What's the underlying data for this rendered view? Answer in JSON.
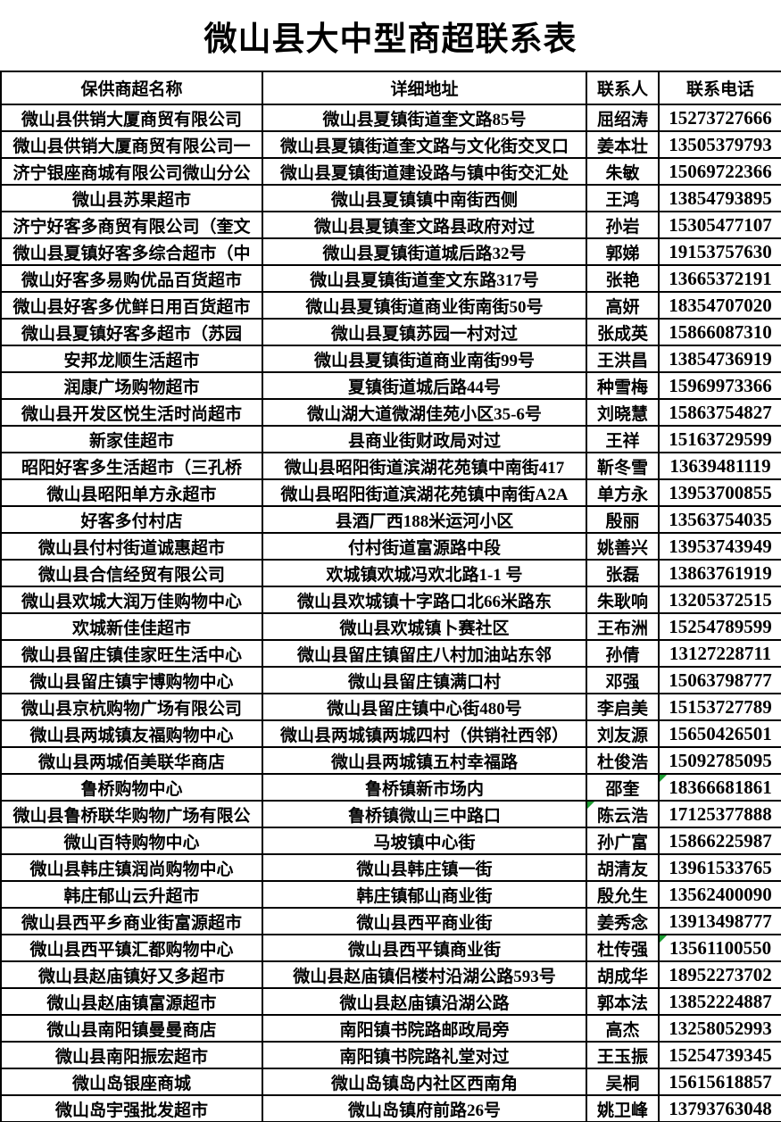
{
  "title": "微山县大中型商超联系表",
  "colors": {
    "border": "#000000",
    "text": "#000000",
    "background": "#ffffff",
    "flag_green": "#1e9e33"
  },
  "table": {
    "headers": [
      "保供商超名称",
      "详细地址",
      "联系人",
      "联系电话"
    ],
    "rows": [
      {
        "name": "微山县供销大厦商贸有限公司",
        "address": "微山县夏镇街道奎文路85号",
        "contact": "屈绍涛",
        "phone": "15273727666",
        "flag": null
      },
      {
        "name": "微山县供销大厦商贸有限公司一",
        "address": "微山县夏镇街道奎文路与文化街交叉口",
        "contact": "姜本壮",
        "phone": "13505379793",
        "flag": null
      },
      {
        "name": "济宁银座商城有限公司微山分公",
        "address": "微山县夏镇街道建设路与镇中街交汇处",
        "contact": "朱敏",
        "phone": "15069722366",
        "flag": null
      },
      {
        "name": "微山县苏果超市",
        "address": "微山县夏镇镇中南街西侧",
        "contact": "王鸿",
        "phone": "13854793895",
        "flag": null
      },
      {
        "name": "济宁好客多商贸有限公司（奎文",
        "address": "微山县夏镇奎文路县政府对过",
        "contact": "孙岩",
        "phone": "15305477107",
        "flag": null
      },
      {
        "name": "微山县夏镇好客多综合超市（中",
        "address": "微山县夏镇街道城后路32号",
        "contact": "郭娣",
        "phone": "19153757630",
        "flag": null
      },
      {
        "name": "微山好客多易购优品百货超市",
        "address": "微山县夏镇街道奎文东路317号",
        "contact": "张艳",
        "phone": "13665372191",
        "flag": null
      },
      {
        "name": "微山县好客多优鲜日用百货超市",
        "address": "微山县夏镇街道商业街南街50号",
        "contact": "高妍",
        "phone": "18354707020",
        "flag": null
      },
      {
        "name": "微山县夏镇好客多超市（苏园",
        "address": "微山县夏镇苏园一村对过",
        "contact": "张成英",
        "phone": "15866087310",
        "flag": null
      },
      {
        "name": "安邦龙顺生活超市",
        "address": "微山县夏镇街道商业南街99号",
        "contact": "王洪昌",
        "phone": "13854736919",
        "flag": null
      },
      {
        "name": "润康广场购物超市",
        "address": "夏镇街道城后路44号",
        "contact": "种雪梅",
        "phone": "15969973366",
        "flag": null
      },
      {
        "name": "微山县开发区悦生活时尚超市",
        "address": "微山湖大道微湖佳苑小区35-6号",
        "contact": "刘晓慧",
        "phone": "15863754827",
        "flag": null
      },
      {
        "name": "新家佳超市",
        "address": "县商业街财政局对过",
        "contact": "王祥",
        "phone": "15163729599",
        "flag": null
      },
      {
        "name": "昭阳好客多生活超市（三孔桥",
        "address": "微山县昭阳街道滨湖花苑镇中南街417",
        "contact": "靳冬雪",
        "phone": "13639481119",
        "flag": null
      },
      {
        "name": "微山县昭阳单方永超市",
        "address": "微山县昭阳街道滨湖花苑镇中南街A2A",
        "contact": "单方永",
        "phone": "13953700855",
        "flag": null
      },
      {
        "name": "好客多付村店",
        "address": "县酒厂西188米运河小区",
        "contact": "殷丽",
        "phone": "13563754035",
        "flag": null
      },
      {
        "name": "微山县付村街道诚惠超市",
        "address": "付村街道富源路中段",
        "contact": "姚善兴",
        "phone": "13953743949",
        "flag": null
      },
      {
        "name": "微山县合信经贸有限公司",
        "address": "欢城镇欢城冯欢北路1-1 号",
        "contact": "张磊",
        "phone": "13863761919",
        "flag": null
      },
      {
        "name": "微山县欢城大润万佳购物中心",
        "address": "微山县欢城镇十字路口北66米路东",
        "contact": "朱耿响",
        "phone": "13205372515",
        "flag": null
      },
      {
        "name": "欢城新佳佳超市",
        "address": "微山县欢城镇卜赛社区",
        "contact": "王布洲",
        "phone": "15254789599",
        "flag": null
      },
      {
        "name": "微山县留庄镇佳家旺生活中心",
        "address": "微山县留庄镇留庄八村加油站东邻",
        "contact": "孙倩",
        "phone": "13127228711",
        "flag": null
      },
      {
        "name": "微山县留庄镇宇博购物中心",
        "address": "微山县留庄镇满口村",
        "contact": "邓强",
        "phone": "15063798777",
        "flag": null
      },
      {
        "name": "微山县京杭购物广场有限公司",
        "address": "微山县留庄镇中心街480号",
        "contact": "李启美",
        "phone": "15153727789",
        "flag": null
      },
      {
        "name": "微山县两城镇友福购物中心",
        "address": "微山县两城镇两城四村（供销社西邻）",
        "contact": "刘友源",
        "phone": "15650426501",
        "flag": null
      },
      {
        "name": "微山县两城佰美联华商店",
        "address": "微山县两城镇五村幸福路",
        "contact": "杜俊浩",
        "phone": "15092785095",
        "flag": null
      },
      {
        "name": "鲁桥购物中心",
        "address": "鲁桥镇新市场内",
        "contact": "邵奎",
        "phone": "18366681861",
        "flag": "phone"
      },
      {
        "name": "微山县鲁桥联华购物广场有限公",
        "address": "鲁桥镇微山三中路口",
        "contact": "陈云浩",
        "phone": "17125377888",
        "flag": "contact"
      },
      {
        "name": "微山百特购物中心",
        "address": "马坡镇中心街",
        "contact": "孙广富",
        "phone": "15866225987",
        "flag": null
      },
      {
        "name": "微山县韩庄镇润尚购物中心",
        "address": "微山县韩庄镇一街",
        "contact": "胡清友",
        "phone": "13961533765",
        "flag": null
      },
      {
        "name": "韩庄郁山云升超市",
        "address": "韩庄镇郁山商业街",
        "contact": "殷允生",
        "phone": "13562400090",
        "flag": null
      },
      {
        "name": "微山县西平乡商业街富源超市",
        "address": "微山县西平商业街",
        "contact": "姜秀念",
        "phone": "13913498777",
        "flag": null
      },
      {
        "name": "微山县西平镇汇都购物中心",
        "address": "微山县西平镇商业街",
        "contact": "杜传强",
        "phone": "13561100550",
        "flag": "phone"
      },
      {
        "name": "微山县赵庙镇好又多超市",
        "address": "微山县赵庙镇侣楼村沿湖公路593号",
        "contact": "胡成华",
        "phone": "18952273702",
        "flag": null
      },
      {
        "name": "微山县赵庙镇富源超市",
        "address": "微山县赵庙镇沿湖公路",
        "contact": "郭本法",
        "phone": "13852224887",
        "flag": null
      },
      {
        "name": "微山县南阳镇曼曼商店",
        "address": "南阳镇书院路邮政局旁",
        "contact": "高杰",
        "phone": "13258052993",
        "flag": null
      },
      {
        "name": "微山县南阳振宏超市",
        "address": "南阳镇书院路礼堂对过",
        "contact": "王玉振",
        "phone": "15254739345",
        "flag": null
      },
      {
        "name": "微山岛银座商城",
        "address": "微山岛镇岛内社区西南角",
        "contact": "吴桐",
        "phone": "15615618857",
        "flag": null
      },
      {
        "name": "微山岛宇强批发超市",
        "address": "微山岛镇府前路26号",
        "contact": "姚卫峰",
        "phone": "13793763048",
        "flag": null
      }
    ]
  }
}
